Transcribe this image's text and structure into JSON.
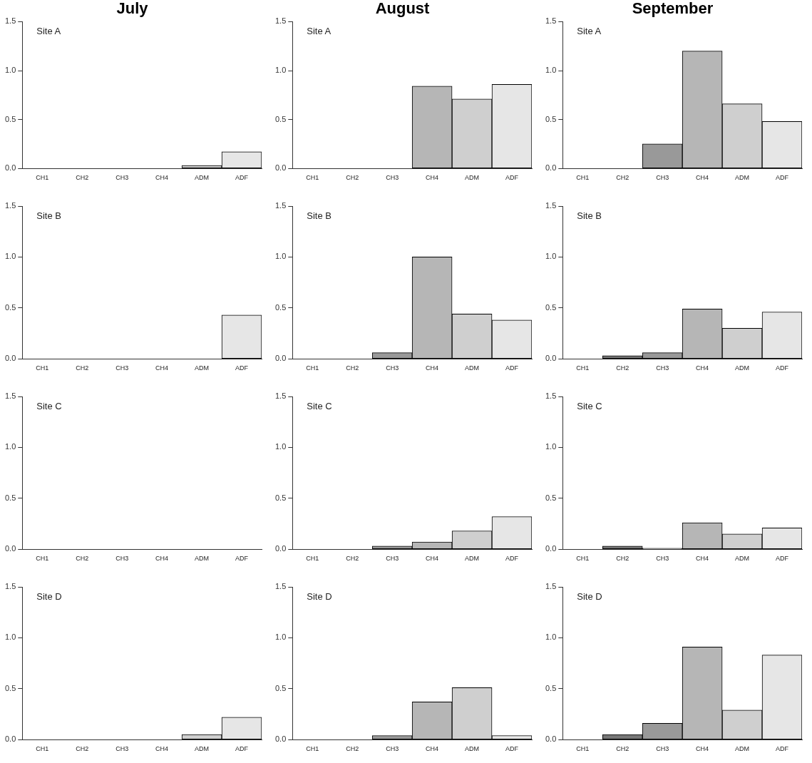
{
  "chart_data": [
    {
      "type": "bar",
      "title": "July",
      "categories": [
        "CH1",
        "CH2",
        "CH3",
        "CH4",
        "ADM",
        "ADF"
      ],
      "values": [
        0,
        0,
        0,
        0,
        0.03,
        0.17
      ],
      "colors": [
        "#4d4d4d",
        "#777777",
        "#999999",
        "#b6b6b6",
        "#cfcfcf",
        "#e6e6e6"
      ],
      "ylim": [
        0,
        1.5
      ],
      "yticks": [
        {
          "value": 0,
          "label": "0.0"
        },
        {
          "value": 0.5,
          "label": "0.5"
        },
        {
          "value": 1,
          "label": "1.0"
        },
        {
          "value": 1.5,
          "label": "1.5"
        }
      ],
      "annotations": [
        "Site A"
      ]
    },
    {
      "type": "bar",
      "title": "August",
      "categories": [
        "CH1",
        "CH2",
        "CH3",
        "CH4",
        "ADM",
        "ADF"
      ],
      "values": [
        0,
        0,
        0,
        0.84,
        0.71,
        0.86
      ],
      "colors": [
        "#4d4d4d",
        "#777777",
        "#999999",
        "#b6b6b6",
        "#cfcfcf",
        "#e6e6e6"
      ],
      "ylim": [
        0,
        1.5
      ],
      "yticks": [
        {
          "value": 0,
          "label": "0.0"
        },
        {
          "value": 0.5,
          "label": "0.5"
        },
        {
          "value": 1,
          "label": "1.0"
        },
        {
          "value": 1.5,
          "label": "1.5"
        }
      ],
      "annotations": [
        "Site A"
      ]
    },
    {
      "type": "bar",
      "title": "September",
      "categories": [
        "CH1",
        "CH2",
        "CH3",
        "CH4",
        "ADM",
        "ADF"
      ],
      "values": [
        0,
        0,
        0.25,
        1.2,
        0.66,
        0.48
      ],
      "colors": [
        "#4d4d4d",
        "#777777",
        "#999999",
        "#b6b6b6",
        "#cfcfcf",
        "#e6e6e6"
      ],
      "ylim": [
        0,
        1.5
      ],
      "yticks": [
        {
          "value": 0,
          "label": "0.0"
        },
        {
          "value": 0.5,
          "label": "0.5"
        },
        {
          "value": 1,
          "label": "1.0"
        },
        {
          "value": 1.5,
          "label": "1.5"
        }
      ],
      "annotations": [
        "Site A"
      ]
    },
    {
      "type": "bar",
      "categories": [
        "CH1",
        "CH2",
        "CH3",
        "CH4",
        "ADM",
        "ADF"
      ],
      "values": [
        0,
        0,
        0,
        0,
        0,
        0.43
      ],
      "colors": [
        "#4d4d4d",
        "#777777",
        "#999999",
        "#b6b6b6",
        "#cfcfcf",
        "#e6e6e6"
      ],
      "ylim": [
        0,
        1.5
      ],
      "yticks": [
        {
          "value": 0,
          "label": "0.0"
        },
        {
          "value": 0.5,
          "label": "0.5"
        },
        {
          "value": 1,
          "label": "1.0"
        },
        {
          "value": 1.5,
          "label": "1.5"
        }
      ],
      "annotations": [
        "Site B"
      ]
    },
    {
      "type": "bar",
      "categories": [
        "CH1",
        "CH2",
        "CH3",
        "CH4",
        "ADM",
        "ADF"
      ],
      "values": [
        0,
        0,
        0.06,
        1.0,
        0.44,
        0.38
      ],
      "colors": [
        "#4d4d4d",
        "#777777",
        "#999999",
        "#b6b6b6",
        "#cfcfcf",
        "#e6e6e6"
      ],
      "ylim": [
        0,
        1.5
      ],
      "yticks": [
        {
          "value": 0,
          "label": "0.0"
        },
        {
          "value": 0.5,
          "label": "0.5"
        },
        {
          "value": 1,
          "label": "1.0"
        },
        {
          "value": 1.5,
          "label": "1.5"
        }
      ],
      "annotations": [
        "Site B"
      ]
    },
    {
      "type": "bar",
      "categories": [
        "CH1",
        "CH2",
        "CH3",
        "CH4",
        "ADM",
        "ADF"
      ],
      "values": [
        0,
        0.03,
        0.06,
        0.49,
        0.3,
        0.46
      ],
      "colors": [
        "#4d4d4d",
        "#777777",
        "#999999",
        "#b6b6b6",
        "#cfcfcf",
        "#e6e6e6"
      ],
      "ylim": [
        0,
        1.5
      ],
      "yticks": [
        {
          "value": 0,
          "label": "0.0"
        },
        {
          "value": 0.5,
          "label": "0.5"
        },
        {
          "value": 1,
          "label": "1.0"
        },
        {
          "value": 1.5,
          "label": "1.5"
        }
      ],
      "annotations": [
        "Site B"
      ]
    },
    {
      "type": "bar",
      "categories": [
        "CH1",
        "CH2",
        "CH3",
        "CH4",
        "ADM",
        "ADF"
      ],
      "values": [
        0,
        0,
        0,
        0,
        0,
        0
      ],
      "colors": [
        "#4d4d4d",
        "#777777",
        "#999999",
        "#b6b6b6",
        "#cfcfcf",
        "#e6e6e6"
      ],
      "ylim": [
        0,
        1.5
      ],
      "yticks": [
        {
          "value": 0,
          "label": "0.0"
        },
        {
          "value": 0.5,
          "label": "0.5"
        },
        {
          "value": 1,
          "label": "1.0"
        },
        {
          "value": 1.5,
          "label": "1.5"
        }
      ],
      "annotations": [
        "Site C"
      ]
    },
    {
      "type": "bar",
      "categories": [
        "CH1",
        "CH2",
        "CH3",
        "CH4",
        "ADM",
        "ADF"
      ],
      "values": [
        0,
        0,
        0.03,
        0.07,
        0.18,
        0.32
      ],
      "colors": [
        "#4d4d4d",
        "#777777",
        "#999999",
        "#b6b6b6",
        "#cfcfcf",
        "#e6e6e6"
      ],
      "ylim": [
        0,
        1.5
      ],
      "yticks": [
        {
          "value": 0,
          "label": "0.0"
        },
        {
          "value": 0.5,
          "label": "0.5"
        },
        {
          "value": 1,
          "label": "1.0"
        },
        {
          "value": 1.5,
          "label": "1.5"
        }
      ],
      "annotations": [
        "Site C"
      ]
    },
    {
      "type": "bar",
      "categories": [
        "CH1",
        "CH2",
        "CH3",
        "CH4",
        "ADM",
        "ADF"
      ],
      "values": [
        0,
        0.03,
        0.01,
        0.26,
        0.15,
        0.21
      ],
      "colors": [
        "#4d4d4d",
        "#777777",
        "#999999",
        "#b6b6b6",
        "#cfcfcf",
        "#e6e6e6"
      ],
      "ylim": [
        0,
        1.5
      ],
      "yticks": [
        {
          "value": 0,
          "label": "0.0"
        },
        {
          "value": 0.5,
          "label": "0.5"
        },
        {
          "value": 1,
          "label": "1.0"
        },
        {
          "value": 1.5,
          "label": "1.5"
        }
      ],
      "annotations": [
        "Site C"
      ]
    },
    {
      "type": "bar",
      "categories": [
        "CH1",
        "CH2",
        "CH3",
        "CH4",
        "ADM",
        "ADF"
      ],
      "values": [
        0,
        0,
        0,
        0,
        0.05,
        0.22
      ],
      "colors": [
        "#4d4d4d",
        "#777777",
        "#999999",
        "#b6b6b6",
        "#cfcfcf",
        "#e6e6e6"
      ],
      "ylim": [
        0,
        1.5
      ],
      "yticks": [
        {
          "value": 0,
          "label": "0.0"
        },
        {
          "value": 0.5,
          "label": "0.5"
        },
        {
          "value": 1,
          "label": "1.0"
        },
        {
          "value": 1.5,
          "label": "1.5"
        }
      ],
      "annotations": [
        "Site D"
      ]
    },
    {
      "type": "bar",
      "categories": [
        "CH1",
        "CH2",
        "CH3",
        "CH4",
        "ADM",
        "ADF"
      ],
      "values": [
        0,
        0,
        0.04,
        0.37,
        0.51,
        0.04
      ],
      "colors": [
        "#4d4d4d",
        "#777777",
        "#999999",
        "#b6b6b6",
        "#cfcfcf",
        "#e6e6e6"
      ],
      "ylim": [
        0,
        1.5
      ],
      "yticks": [
        {
          "value": 0,
          "label": "0.0"
        },
        {
          "value": 0.5,
          "label": "0.5"
        },
        {
          "value": 1,
          "label": "1.0"
        },
        {
          "value": 1.5,
          "label": "1.5"
        }
      ],
      "annotations": [
        "Site D"
      ]
    },
    {
      "type": "bar",
      "categories": [
        "CH1",
        "CH2",
        "CH3",
        "CH4",
        "ADM",
        "ADF"
      ],
      "values": [
        0,
        0.05,
        0.16,
        0.91,
        0.29,
        0.83
      ],
      "colors": [
        "#4d4d4d",
        "#777777",
        "#999999",
        "#b6b6b6",
        "#cfcfcf",
        "#e6e6e6"
      ],
      "ylim": [
        0,
        1.5
      ],
      "yticks": [
        {
          "value": 0,
          "label": "0.0"
        },
        {
          "value": 0.5,
          "label": "0.5"
        },
        {
          "value": 1,
          "label": "1.0"
        },
        {
          "value": 1.5,
          "label": "1.5"
        }
      ],
      "annotations": [
        "Site D"
      ]
    }
  ]
}
